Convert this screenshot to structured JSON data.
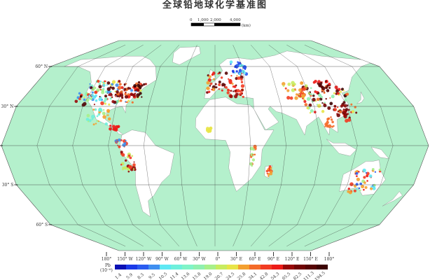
{
  "title": "全球铅地球化学基准图",
  "scale_bar": {
    "ticks": [
      "0",
      "1,000",
      "2,000",
      "4,000"
    ],
    "unit": "(km)"
  },
  "latitude_labels": [
    "60° N",
    "30° N",
    "0°",
    "30° S",
    "60° S"
  ],
  "longitude_labels": [
    "180°",
    "150° W",
    "120° W",
    "90° W",
    "60° W",
    "30° W",
    "0°",
    "30° E",
    "60° E",
    "90° E",
    "120° E",
    "150° E",
    "180°"
  ],
  "legend": {
    "title": "Pb",
    "unit": "(10⁻⁶)",
    "labels": [
      "1.4",
      "5.9",
      "8.3",
      "9.5",
      "10.5",
      "11.4",
      "13.6",
      "15.8",
      "19.0",
      "20.7",
      "24.5",
      "25.8",
      "34.1",
      "42.8",
      "54.3",
      "65.5",
      "82.5",
      "111.3",
      "194.5"
    ],
    "colors": [
      "#0a10b4",
      "#1a3ae8",
      "#2a5cf0",
      "#3f8ff0",
      "#5ee8f4",
      "#6ef0dc",
      "#80f4c8",
      "#90f0b0",
      "#a8f08a",
      "#c8ec60",
      "#e8e448",
      "#f4a030",
      "#f46a28",
      "#f23c22",
      "#ec1c18",
      "#980808",
      "#700404",
      "#560404",
      "#3c0202"
    ]
  },
  "colors": {
    "ocean": "#b4f0cc",
    "land": "#ffffff",
    "graticule": "#333333"
  }
}
